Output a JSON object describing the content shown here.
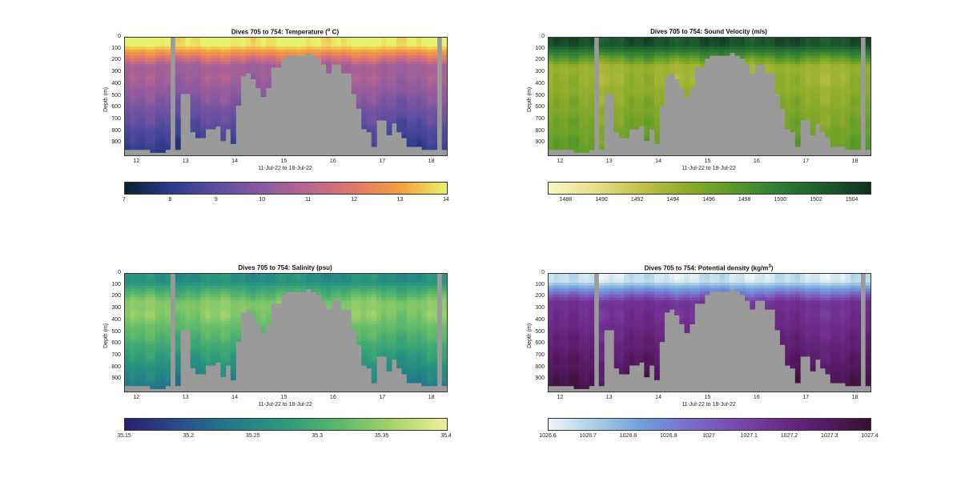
{
  "chart_data": [
    {
      "type": "heatmap",
      "title": "Dives 705 to 754: Temperature (",
      "title_sup": "o",
      "title_suffix": " C)",
      "ylabel": "Depth (m)",
      "xlabel": "11-Jul-22 to 18-Jul-22",
      "yticks": [
        "0",
        "100",
        "200",
        "300",
        "400",
        "500",
        "600",
        "700",
        "800",
        "900"
      ],
      "xticks": [
        "12",
        "13",
        "14",
        "15",
        "16",
        "17",
        "18"
      ],
      "ylim": [
        0,
        1000
      ],
      "xlim": [
        11.75,
        18.3
      ],
      "colorbar": {
        "min": 7,
        "max": 14,
        "ticks": [
          "7",
          "8",
          "9",
          "10",
          "11",
          "12",
          "13",
          "14"
        ],
        "colors": [
          "#0b1f2e",
          "#2d3a8c",
          "#5b4da0",
          "#8c5aa0",
          "#b9668f",
          "#e0786a",
          "#f5a040",
          "#e8f26a"
        ]
      },
      "profile": {
        "surface": 14,
        "mid": 10.5,
        "deep": 7.8
      }
    },
    {
      "type": "heatmap",
      "title": "Dives 705 to 754: Sound Velocity (m/s)",
      "ylabel": "Depth (m)",
      "xlabel": "11-Jul-22 to 18-Jul-22",
      "yticks": [
        "0",
        "100",
        "200",
        "300",
        "400",
        "500",
        "600",
        "700",
        "800",
        "900"
      ],
      "xticks": [
        "12",
        "13",
        "14",
        "15",
        "16",
        "17",
        "18"
      ],
      "ylim": [
        0,
        1000
      ],
      "xlim": [
        11.75,
        18.3
      ],
      "colorbar": {
        "min": 1487,
        "max": 1505,
        "ticks": [
          "1488",
          "1490",
          "1492",
          "1494",
          "1496",
          "1498",
          "1500",
          "1502",
          "1504"
        ],
        "colors": [
          "#fbf7c6",
          "#e6e08c",
          "#c2c24a",
          "#8fac2a",
          "#5a9a2a",
          "#2f7d34",
          "#1c5a2e",
          "#12301c"
        ]
      },
      "profile": {
        "surface": 1503,
        "mid": 1494,
        "deep": 1497
      }
    },
    {
      "type": "heatmap",
      "title": "Dives 705 to 754: Salinity (psu)",
      "ylabel": "Depth (m)",
      "xlabel": "11-Jul-22 to 18-Jul-22",
      "yticks": [
        "0",
        "100",
        "200",
        "300",
        "400",
        "500",
        "600",
        "700",
        "800",
        "900"
      ],
      "xticks": [
        "12",
        "13",
        "14",
        "15",
        "16",
        "17",
        "18"
      ],
      "ylim": [
        0,
        1000
      ],
      "xlim": [
        11.75,
        18.3
      ],
      "colorbar": {
        "min": 35.15,
        "max": 35.4,
        "ticks": [
          "35.15",
          "35.2",
          "35.25",
          "35.3",
          "35.35",
          "35.4"
        ],
        "colors": [
          "#2a1e6e",
          "#2b4c8c",
          "#237a8a",
          "#2c9a7c",
          "#5cb86a",
          "#a6d46a",
          "#f2ef9a"
        ]
      },
      "profile": {
        "surface": 35.26,
        "mid": 35.34,
        "deep": 35.22
      }
    },
    {
      "type": "heatmap",
      "title": "Dives 705 to 754: Potential density (kg/m",
      "title_sup": "3",
      "title_suffix": ")",
      "ylabel": "Depth (m)",
      "xlabel": "11-Jul-22 to 18-Jul-22",
      "yticks": [
        "0",
        "100",
        "200",
        "300",
        "400",
        "500",
        "600",
        "700",
        "800",
        "900"
      ],
      "xticks": [
        "12",
        "13",
        "14",
        "15",
        "16",
        "17",
        "18"
      ],
      "ylim": [
        0,
        1000
      ],
      "xlim": [
        11.75,
        18.3
      ],
      "colorbar": {
        "min": 1026.6,
        "max": 1027.4,
        "ticks": [
          "1026.6",
          "1026.7",
          "1026.8",
          "1026.9",
          "1027",
          "1027.1",
          "1027.2",
          "1027.3",
          "1027.4"
        ],
        "colors": [
          "#eef6f8",
          "#a9cfe6",
          "#6fa0dc",
          "#7a6fd0",
          "#7a4ab0",
          "#6e2c8a",
          "#551a64",
          "#36102e"
        ]
      },
      "profile": {
        "surface": 1026.65,
        "mid": 1027.15,
        "deep": 1027.35
      }
    }
  ]
}
